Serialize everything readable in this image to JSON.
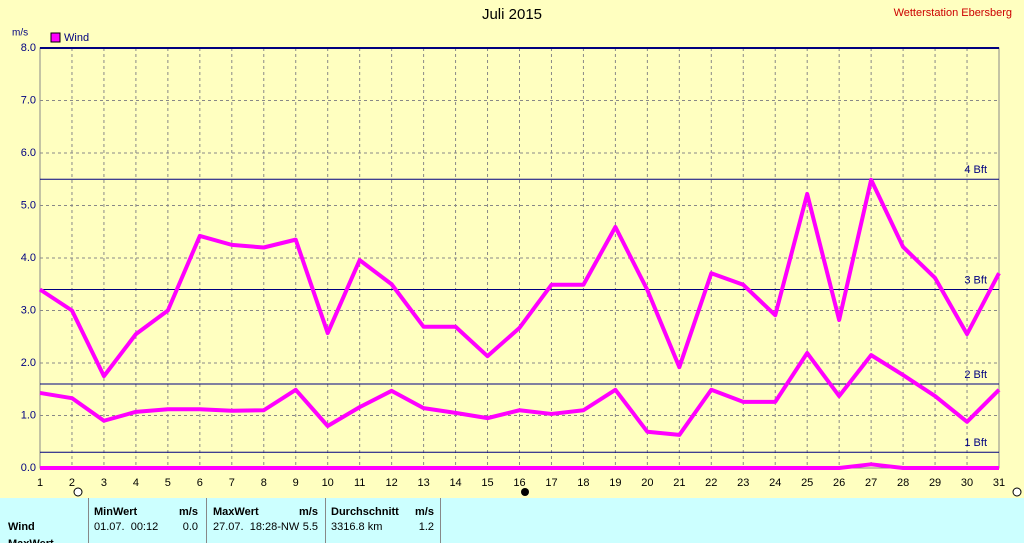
{
  "chart_data": {
    "type": "line",
    "title": "Juli 2015",
    "station": "Wetterstation Ebersberg",
    "y_label": "m/s",
    "legend": "Wind",
    "legend_color": "#ff00ff",
    "x": [
      1,
      2,
      3,
      4,
      5,
      6,
      7,
      8,
      9,
      10,
      11,
      12,
      13,
      14,
      15,
      16,
      17,
      18,
      19,
      20,
      21,
      22,
      23,
      24,
      25,
      26,
      27,
      28,
      29,
      30,
      31
    ],
    "xlim": [
      1,
      31
    ],
    "xticks": [
      1,
      2,
      3,
      4,
      5,
      6,
      7,
      8,
      9,
      10,
      11,
      12,
      13,
      14,
      15,
      16,
      17,
      18,
      19,
      20,
      21,
      22,
      23,
      24,
      25,
      26,
      27,
      28,
      29,
      30,
      31
    ],
    "ylim": [
      0,
      8
    ],
    "yticks": [
      {
        "value": 0,
        "label": "0.0"
      },
      {
        "value": 1,
        "label": "1.0"
      },
      {
        "value": 2,
        "label": "2.0"
      },
      {
        "value": 3,
        "label": "3.0"
      },
      {
        "value": 4,
        "label": "4.0"
      },
      {
        "value": 5,
        "label": "5.0"
      },
      {
        "value": 6,
        "label": "6.0"
      },
      {
        "value": 7,
        "label": "7.0"
      },
      {
        "value": 8,
        "label": "8.0"
      }
    ],
    "grid": true,
    "ref_lines": [
      {
        "value": 0.3,
        "label": "1 Bft"
      },
      {
        "value": 1.6,
        "label": "2 Bft"
      },
      {
        "value": 3.4,
        "label": "3 Bft"
      },
      {
        "value": 5.5,
        "label": "4 Bft"
      }
    ],
    "ref_color": "#000080",
    "series": [
      {
        "color": "#ff00ff",
        "values": [
          3.4,
          3.0,
          1.75,
          2.55,
          3.0,
          4.42,
          4.25,
          4.2,
          4.35,
          2.57,
          3.96,
          3.5,
          2.69,
          2.69,
          2.13,
          2.67,
          3.49,
          3.49,
          4.59,
          3.39,
          1.92,
          3.71,
          3.49,
          2.91,
          5.22,
          2.82,
          5.49,
          4.21,
          3.62,
          2.55,
          3.71
        ]
      },
      {
        "color": "#ff00ff",
        "values": [
          1.43,
          1.33,
          0.9,
          1.07,
          1.12,
          1.12,
          1.09,
          1.1,
          1.49,
          0.8,
          1.16,
          1.47,
          1.14,
          1.05,
          0.95,
          1.1,
          1.03,
          1.1,
          1.49,
          0.69,
          0.63,
          1.49,
          1.26,
          1.26,
          2.19,
          1.37,
          2.15,
          1.77,
          1.37,
          0.88,
          1.49
        ]
      },
      {
        "color": "#ff00ff",
        "values": [
          0,
          0,
          0,
          0,
          0,
          0,
          0,
          0,
          0,
          0,
          0,
          0,
          0,
          0,
          0,
          0,
          0,
          0,
          0,
          0,
          0,
          0,
          0,
          0,
          0,
          0,
          0.07,
          0,
          0,
          0,
          0
        ]
      }
    ]
  },
  "table": {
    "headers": [
      "MinWert",
      "m/s",
      "MaxWert",
      "m/s",
      "Durchschnitt",
      "m/s"
    ],
    "rows": [
      {
        "label": "Wind",
        "cells": [
          "01.07.  00:12",
          "0.0",
          "27.07.  18:28-NW",
          "5.5",
          "3316.8 km",
          "1.2"
        ]
      },
      {
        "label": "MaxWert"
      }
    ]
  }
}
